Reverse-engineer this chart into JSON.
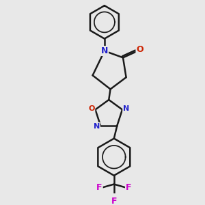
{
  "background_color": "#e8e8e8",
  "bond_color": "#1a1a1a",
  "bond_width": 1.8,
  "N_color": "#2222cc",
  "O_color": "#cc2200",
  "F_color": "#cc00cc",
  "figsize": [
    3.0,
    3.0
  ],
  "dpi": 100,
  "xlim": [
    0.5,
    3.5
  ],
  "ylim": [
    0.1,
    5.0
  ]
}
